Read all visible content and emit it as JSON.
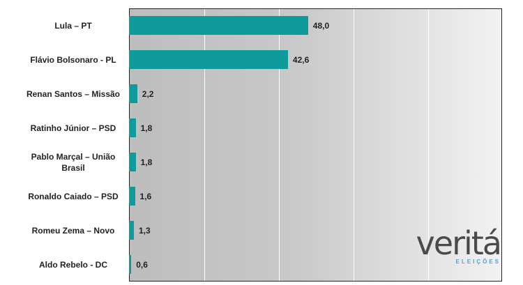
{
  "chart_data": {
    "type": "bar",
    "orientation": "horizontal",
    "categories": [
      "Lula – PT",
      "Flávio Bolsonaro - PL",
      "Renan Santos – Missão",
      "Ratinho Júnior – PSD",
      "Pablo Marçal – União Brasil",
      "Ronaldo Caiado – PSD",
      "Romeu Zema – Novo",
      "Aldo Rebelo - DC"
    ],
    "values": [
      48.0,
      42.6,
      2.2,
      1.8,
      1.8,
      1.6,
      1.3,
      0.6
    ],
    "value_labels": [
      "48,0",
      "42,6",
      "2,2",
      "1,8",
      "1,8",
      "1,6",
      "1,3",
      "0,6"
    ],
    "color": "#0f9a9c",
    "xlim": [
      0,
      100
    ],
    "xticks": [
      0,
      20,
      40,
      60,
      80,
      100
    ],
    "grid": true,
    "logo": {
      "title": "veritá",
      "subtitle": "ELEIÇÕES"
    }
  }
}
